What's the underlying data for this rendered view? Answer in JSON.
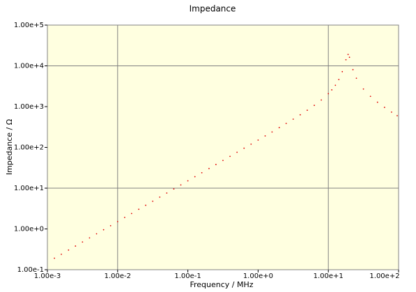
{
  "chart_data": {
    "type": "scatter",
    "title": "Impedance",
    "x_label": "Frequency / MHz",
    "y_label": "Impedance / Ω",
    "x_log": true,
    "y_log": true,
    "xlim": [
      0.001,
      100
    ],
    "ylim": [
      0.1,
      100000
    ],
    "xticks": [
      {
        "value": 0.001,
        "label": "1.00e-3"
      },
      {
        "value": 0.01,
        "label": "1.00e-2"
      },
      {
        "value": 0.1,
        "label": "1.00e-1"
      },
      {
        "value": 1,
        "label": "1.00e+0"
      },
      {
        "value": 10,
        "label": "1.00e+1"
      },
      {
        "value": 100,
        "label": "1.00e+2"
      }
    ],
    "yticks": [
      {
        "value": 0.1,
        "label": "1.00e-1"
      },
      {
        "value": 1,
        "label": "1.00e+0"
      },
      {
        "value": 10,
        "label": "1.00e+1"
      },
      {
        "value": 100,
        "label": "1.00e+2"
      },
      {
        "value": 1000,
        "label": "1.00e+3"
      },
      {
        "value": 10000,
        "label": "1.00e+4"
      },
      {
        "value": 100000,
        "label": "1.00e+5"
      }
    ],
    "xgrid": [
      0.01,
      10
    ],
    "ygrid": [
      10,
      10000
    ],
    "plot_background": "#ffffe0",
    "grid_color": "#808080",
    "series": [
      {
        "color": "#e00000",
        "x": [
          0.00126,
          0.00158,
          0.002,
          0.00251,
          0.00316,
          0.00398,
          0.00501,
          0.00631,
          0.00794,
          0.01,
          0.0126,
          0.0158,
          0.02,
          0.0251,
          0.0316,
          0.0398,
          0.0501,
          0.0631,
          0.0794,
          0.1,
          0.126,
          0.158,
          0.2,
          0.251,
          0.316,
          0.398,
          0.501,
          0.631,
          0.794,
          1,
          1.26,
          1.58,
          2,
          2.51,
          3.16,
          3.98,
          5.01,
          6.31,
          7.94,
          10,
          11.2,
          12.6,
          14.1,
          15.8,
          17.8,
          19.1,
          20.0,
          22.4,
          25.1,
          31.6,
          39.8,
          50.1,
          63.1,
          79.4,
          95.5
        ],
        "values": [
          0.191,
          0.239,
          0.303,
          0.38,
          0.478,
          0.603,
          0.759,
          0.955,
          1.2,
          1.51,
          1.91,
          2.39,
          3.03,
          3.8,
          4.78,
          6.03,
          7.59,
          9.55,
          12.0,
          15.1,
          19.1,
          23.9,
          30.3,
          38.0,
          47.8,
          60.3,
          75.9,
          95.5,
          120,
          151,
          191,
          239,
          306,
          387,
          492,
          631,
          815,
          1073,
          1455,
          2077,
          2578,
          3336,
          4610,
          7204,
          14094,
          19030,
          16231,
          8067,
          4969,
          2701,
          1788,
          1281,
          959,
          734,
          600
        ]
      }
    ]
  }
}
